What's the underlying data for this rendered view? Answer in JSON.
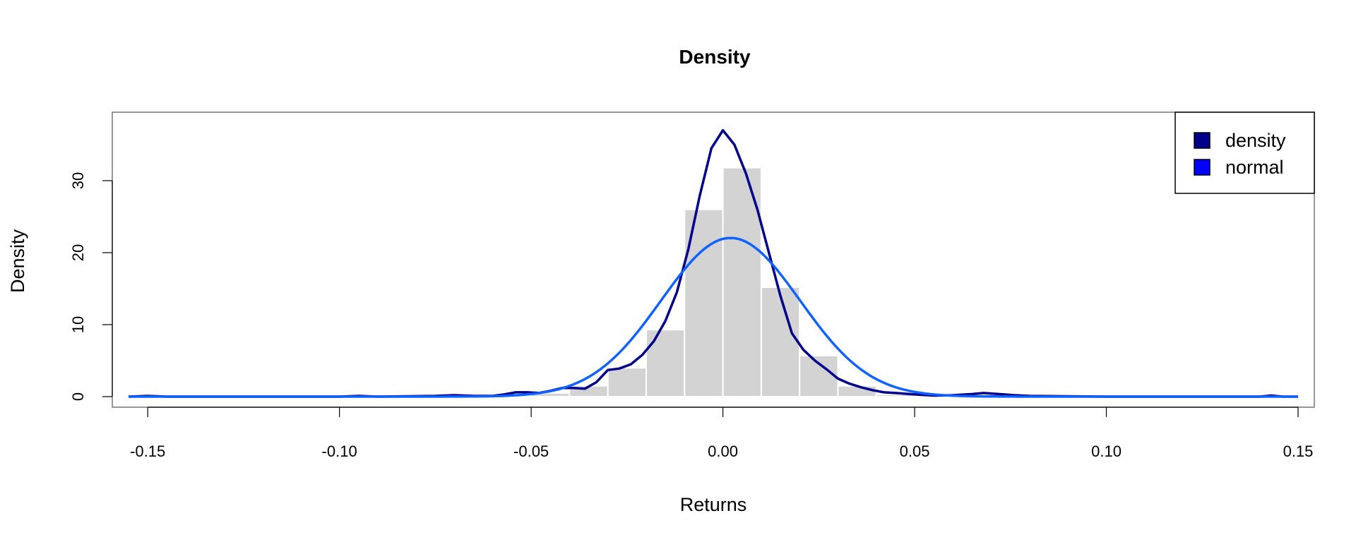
{
  "chart_data": {
    "type": "histogram",
    "title": "Density",
    "xlabel": "Returns",
    "ylabel": "Density",
    "xlim": [
      -0.155,
      0.15
    ],
    "ylim": [
      0,
      38
    ],
    "x_ticks": [
      -0.15,
      -0.1,
      -0.05,
      0.0,
      0.05,
      0.1,
      0.15
    ],
    "x_tick_labels": [
      "-0.15",
      "-0.10",
      "-0.05",
      "0.00",
      "0.05",
      "0.10",
      "0.15"
    ],
    "y_ticks": [
      0,
      10,
      20,
      30
    ],
    "y_tick_labels": [
      "0",
      "10",
      "20",
      "30"
    ],
    "histogram": {
      "bin_width": 0.01,
      "bins": [
        {
          "x0": -0.05,
          "x1": -0.04,
          "value": 0.5
        },
        {
          "x0": -0.04,
          "x1": -0.03,
          "value": 1.5
        },
        {
          "x0": -0.03,
          "x1": -0.02,
          "value": 4.0
        },
        {
          "x0": -0.02,
          "x1": -0.01,
          "value": 9.3
        },
        {
          "x0": -0.01,
          "x1": 0.0,
          "value": 26.0
        },
        {
          "x0": 0.0,
          "x1": 0.01,
          "value": 31.8
        },
        {
          "x0": 0.01,
          "x1": 0.02,
          "value": 15.2
        },
        {
          "x0": 0.02,
          "x1": 0.03,
          "value": 5.7
        },
        {
          "x0": 0.03,
          "x1": 0.04,
          "value": 1.5
        },
        {
          "x0": 0.04,
          "x1": 0.05,
          "value": 0.3
        }
      ],
      "color": "#d3d3d3"
    },
    "series": [
      {
        "name": "density",
        "color": "#00008b",
        "x": [
          -0.155,
          -0.15,
          -0.145,
          -0.12,
          -0.1,
          -0.095,
          -0.09,
          -0.075,
          -0.07,
          -0.065,
          -0.06,
          -0.057,
          -0.054,
          -0.051,
          -0.048,
          -0.045,
          -0.042,
          -0.039,
          -0.036,
          -0.033,
          -0.03,
          -0.027,
          -0.024,
          -0.021,
          -0.018,
          -0.015,
          -0.012,
          -0.009,
          -0.006,
          -0.003,
          0.0,
          0.003,
          0.006,
          0.009,
          0.012,
          0.015,
          0.018,
          0.021,
          0.024,
          0.027,
          0.03,
          0.033,
          0.036,
          0.039,
          0.042,
          0.045,
          0.05,
          0.055,
          0.06,
          0.065,
          0.068,
          0.072,
          0.076,
          0.08,
          0.09,
          0.1,
          0.12,
          0.14,
          0.143,
          0.146,
          0.15
        ],
        "y": [
          0.0,
          0.1,
          0.0,
          0.0,
          0.0,
          0.1,
          0.0,
          0.1,
          0.2,
          0.1,
          0.1,
          0.3,
          0.6,
          0.6,
          0.5,
          0.8,
          1.2,
          1.2,
          1.1,
          2.0,
          3.7,
          3.9,
          4.5,
          5.8,
          7.7,
          10.5,
          14.5,
          20.5,
          28.0,
          34.5,
          37.0,
          35.0,
          31.0,
          26.0,
          20.0,
          14.0,
          8.8,
          6.5,
          5.0,
          3.8,
          2.5,
          1.8,
          1.3,
          0.9,
          0.6,
          0.5,
          0.3,
          0.15,
          0.2,
          0.35,
          0.5,
          0.35,
          0.2,
          0.1,
          0.05,
          0.0,
          0.0,
          0.0,
          0.15,
          0.0,
          0.0
        ]
      },
      {
        "name": "normal",
        "color": "#0f62fe",
        "mean": 0.002,
        "sd": 0.0181
      }
    ],
    "legend": {
      "position": "top-right",
      "items": [
        {
          "label": "density",
          "color": "#00008b"
        },
        {
          "label": "normal",
          "color": "#0000ff"
        }
      ]
    },
    "grid": false
  }
}
